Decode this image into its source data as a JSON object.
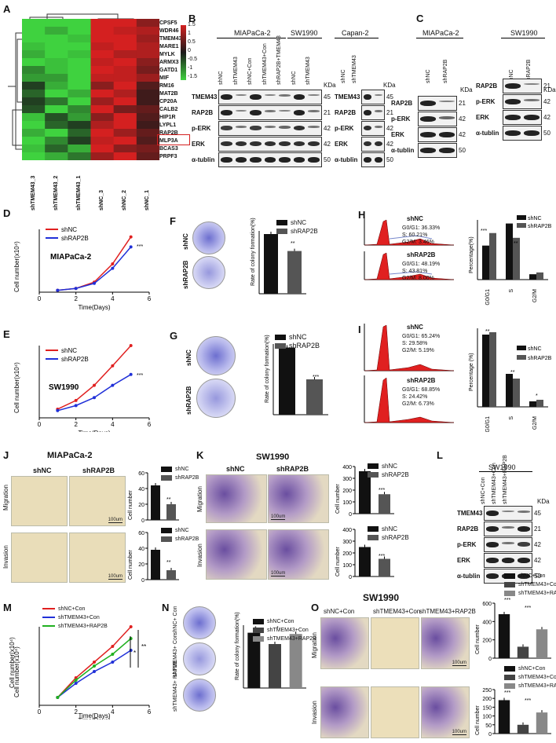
{
  "panel_letters": [
    "A",
    "B",
    "C",
    "D",
    "E",
    "F",
    "G",
    "H",
    "I",
    "J",
    "K",
    "L",
    "M",
    "N",
    "O"
  ],
  "heatmap": {
    "genes": [
      "CPSF5",
      "WDR46",
      "TMEM43",
      "MARE1",
      "MYLK",
      "ARMX3",
      "GATD1",
      "MIF",
      "RM16",
      "MAT2B",
      "CP20A",
      "CALB2",
      "HIP1R",
      "LYPL1",
      "RAP2B",
      "MLP3A",
      "BCAS3",
      "PRPF3"
    ],
    "highlight_gene": "RAP2B",
    "samples": [
      "shTMEM43_3",
      "shTMEM43_2",
      "shTMEM43_1",
      "shNC_3",
      "shNC_2",
      "shNC_1"
    ],
    "scale_ticks": [
      "1.5",
      "1",
      "0.5",
      "0",
      "-0.5",
      "-1",
      "-1.5"
    ],
    "colors": {
      "high": "#d42020",
      "mid": "#1a1a1a",
      "low": "#3fd23f"
    }
  },
  "panel_b": {
    "cell_lines": [
      "MIAPaCa-2",
      "SW1990",
      "Capan-2"
    ],
    "lanes_left": [
      "shNC",
      "shTMEM43",
      "shNC+Con",
      "shTMEM43+Con",
      "shRAP2B+TMEM43",
      "shNC",
      "shTMEM43"
    ],
    "lanes_right": [
      "shNC",
      "shTMEM43"
    ],
    "proteins": [
      "TMEM43",
      "RAP2B",
      "p-ERK",
      "ERK",
      "α-tublin"
    ],
    "kda": [
      "45",
      "21",
      "42",
      "42",
      "50"
    ],
    "kda_label": "KDa"
  },
  "panel_c": {
    "cell_lines": [
      "MIAPaCa-2",
      "SW1990"
    ],
    "lanes": [
      "shNC",
      "shRAP2B"
    ],
    "proteins": [
      "RAP2B",
      "p-ERK",
      "ERK",
      "α-tublin"
    ],
    "kda": [
      "21",
      "42",
      "42",
      "50"
    ],
    "kda_label": "KDa"
  },
  "growth_legend": [
    "shNC",
    "shRAP2B"
  ],
  "colony_legend": [
    "shNC",
    "shRAP2B"
  ],
  "cycle_legend": [
    "shNC",
    "shRAP2B"
  ],
  "panel_d": {
    "cell_line": "MIAPaCa-2",
    "ylabel": "Cell number(x10⁴)",
    "xlabel": "Time(Days)",
    "sig": "***"
  },
  "panel_e": {
    "cell_line": "SW1990",
    "ylabel": "Cell number(x10⁴)",
    "xlabel": "Time(Days)",
    "sig": "***"
  },
  "panel_f": {
    "dish_labels": [
      "shNC",
      "shRAP2B"
    ],
    "ylabel": "Rate of colony formation(%)",
    "sig": "**"
  },
  "panel_g": {
    "dish_labels": [
      "shNC",
      "shRAP2B"
    ],
    "ylabel": "Rate of colony formation(%)",
    "sig": "***"
  },
  "panel_h": {
    "hist_labels": [
      "shNC",
      "shRAP2B"
    ],
    "stats_nc": [
      "G0/G1: 36.33%",
      "S: 60.21%",
      "G2/M: 3.46%"
    ],
    "stats_kd": [
      "G0/G1: 48.19%",
      "S: 43.81%",
      "G2/M: 8.00%"
    ],
    "ylabel": "Percentage(%)",
    "sig": [
      "***",
      "**"
    ]
  },
  "panel_i": {
    "hist_labels": [
      "shNC",
      "shRAP2B"
    ],
    "stats_nc": [
      "G0/G1: 65.24%",
      "S: 29.58%",
      "G2/M: 5.19%"
    ],
    "stats_kd": [
      "G0/G1: 68.85%",
      "S: 24.42%",
      "G2/M: 6.73%"
    ],
    "ylabel": "Percentage (%)",
    "sig": [
      "**",
      "**",
      "*"
    ]
  },
  "panel_j": {
    "title": "MIAPaCa-2",
    "cols": [
      "shNC",
      "shRAP2B"
    ],
    "rows": [
      "Migration",
      "Invasion"
    ],
    "scale": "100um",
    "ylabel": "Cell number",
    "sig": "**"
  },
  "panel_k": {
    "title": "SW1990",
    "cols": [
      "shNC",
      "shRAP2B"
    ],
    "rows": [
      "Migration",
      "Invasion"
    ],
    "scale": "100um",
    "ylabel": "Cell number",
    "sig": "***"
  },
  "panel_l": {
    "title": "SW1990",
    "lanes": [
      "shNC+Con",
      "shTMEM43+Con",
      "shTMEM43+RAP2B"
    ],
    "proteins": [
      "TMEM43",
      "RAP2B",
      "p-ERK",
      "ERK",
      "α-tublin"
    ],
    "kda": [
      "45",
      "21",
      "42",
      "42",
      "50"
    ],
    "kda_label": "KDa"
  },
  "legend3": [
    "shNC+Con",
    "shTMEM43+Con",
    "shTMEM43+RAP2B"
  ],
  "panel_m": {
    "ylabel": "Cell number(x10⁴)",
    "xlabel": "Time(Days)",
    "sig": [
      "*",
      "**"
    ]
  },
  "panel_n": {
    "dish_labels": [
      "shNC+ Con",
      "shTMEM43+ Con",
      "shTMEM43+ RAP2B"
    ],
    "ylabel": "Rate of colony formation(%)",
    "sig": [
      "*",
      "*"
    ]
  },
  "panel_o": {
    "title": "SW1990",
    "cols": [
      "shNC+Con",
      "shTMEM43+Con",
      "shTMEM43+RAP2B"
    ],
    "rows": [
      "Migration",
      "Invasion"
    ],
    "scale": "100um",
    "ylabel": "Cell number",
    "sig": "***"
  },
  "chart_data": [
    {
      "id": "D",
      "type": "line",
      "x": [
        1,
        2,
        3,
        4,
        5
      ],
      "xlim": [
        0,
        6
      ],
      "ylim": [
        0,
        1
      ],
      "xticks": [
        0,
        2,
        4,
        6
      ],
      "series": [
        {
          "name": "shNC",
          "color": "#e02020",
          "values": [
            0.03,
            0.06,
            0.16,
            0.45,
            0.88
          ]
        },
        {
          "name": "shRAP2B",
          "color": "#2030d8",
          "values": [
            0.03,
            0.06,
            0.14,
            0.38,
            0.72
          ]
        }
      ]
    },
    {
      "id": "E",
      "type": "line",
      "x": [
        1,
        2,
        3,
        4,
        5
      ],
      "xlim": [
        0,
        6
      ],
      "ylim": [
        0,
        1
      ],
      "xticks": [
        0,
        2,
        4,
        6
      ],
      "series": [
        {
          "name": "shNC",
          "color": "#e02020",
          "values": [
            0.12,
            0.24,
            0.45,
            0.72,
            1.0
          ]
        },
        {
          "name": "shRAP2B",
          "color": "#2030d8",
          "values": [
            0.1,
            0.17,
            0.28,
            0.45,
            0.6
          ]
        }
      ]
    },
    {
      "id": "F",
      "type": "bar",
      "categories": [
        "shNC",
        "shRAP2B"
      ],
      "values": [
        0.95,
        0.68
      ],
      "ylim": [
        0,
        1
      ],
      "colors": [
        "#111",
        "#555"
      ]
    },
    {
      "id": "G",
      "type": "bar",
      "categories": [
        "shNC",
        "shRAP2B"
      ],
      "values": [
        0.95,
        0.5
      ],
      "ylim": [
        0,
        1
      ],
      "colors": [
        "#111",
        "#555"
      ]
    },
    {
      "id": "H",
      "type": "bar",
      "categories": [
        "G0/G1",
        "S",
        "G2/M"
      ],
      "ylim": [
        0,
        1
      ],
      "series": [
        {
          "name": "shNC",
          "values": [
            0.57,
            0.94,
            0.09
          ]
        },
        {
          "name": "shRAP2B",
          "values": [
            0.78,
            0.7,
            0.12
          ]
        }
      ]
    },
    {
      "id": "I",
      "type": "bar",
      "categories": [
        "G0/G1",
        "S",
        "G2/M"
      ],
      "ylim": [
        0,
        1
      ],
      "series": [
        {
          "name": "shNC",
          "values": [
            0.92,
            0.42,
            0.07
          ]
        },
        {
          "name": "shRAP2B",
          "values": [
            0.95,
            0.36,
            0.09
          ]
        }
      ]
    },
    {
      "id": "J1",
      "type": "bar",
      "categories": [
        "shNC",
        "shRAP2B"
      ],
      "values": [
        44,
        20
      ],
      "ylim": [
        0,
        60
      ],
      "yticks": [
        0,
        20,
        40,
        60
      ]
    },
    {
      "id": "J2",
      "type": "bar",
      "categories": [
        "shNC",
        "shRAP2B"
      ],
      "values": [
        38,
        12
      ],
      "ylim": [
        0,
        60
      ],
      "yticks": [
        0,
        20,
        40,
        60
      ]
    },
    {
      "id": "K1",
      "type": "bar",
      "categories": [
        "shNC",
        "shRAP2B"
      ],
      "values": [
        360,
        165
      ],
      "ylim": [
        0,
        400
      ],
      "yticks": [
        0,
        100,
        200,
        300,
        400
      ]
    },
    {
      "id": "K2",
      "type": "bar",
      "categories": [
        "shNC",
        "shRAP2B"
      ],
      "values": [
        250,
        150
      ],
      "ylim": [
        0,
        400
      ],
      "yticks": [
        0,
        100,
        200,
        300,
        400
      ]
    },
    {
      "id": "M",
      "type": "line",
      "x": [
        1,
        2,
        3,
        4,
        5
      ],
      "xlim": [
        0,
        6
      ],
      "ylim": [
        0,
        1
      ],
      "xticks": [
        0,
        2,
        4,
        6
      ],
      "series": [
        {
          "name": "shNC+Con",
          "color": "#e02020",
          "values": [
            0.1,
            0.35,
            0.55,
            0.75,
            1.0
          ]
        },
        {
          "name": "shTMEM43+Con",
          "color": "#2030d8",
          "values": [
            0.1,
            0.28,
            0.43,
            0.55,
            0.7
          ]
        },
        {
          "name": "shTMEM43+RAP2B",
          "color": "#20b020",
          "values": [
            0.1,
            0.32,
            0.5,
            0.65,
            0.85
          ]
        }
      ]
    },
    {
      "id": "N",
      "type": "bar",
      "categories": [
        "shNC+Con",
        "shTMEM43+Con",
        "shTMEM43+RAP2B"
      ],
      "values": [
        0.88,
        0.7,
        0.86
      ],
      "ylim": [
        0,
        1
      ]
    },
    {
      "id": "O1",
      "type": "bar",
      "categories": [
        "shNC+Con",
        "shTMEM43+Con",
        "shTMEM43+RAP2B"
      ],
      "values": [
        480,
        125,
        315
      ],
      "ylim": [
        0,
        600
      ],
      "yticks": [
        0,
        200,
        400,
        600
      ]
    },
    {
      "id": "O2",
      "type": "bar",
      "categories": [
        "shNC+Con",
        "shTMEM43+Con",
        "shTMEM43+RAP2B"
      ],
      "values": [
        190,
        50,
        120
      ],
      "ylim": [
        0,
        250
      ],
      "yticks": [
        0,
        50,
        100,
        150,
        200,
        250
      ]
    }
  ]
}
